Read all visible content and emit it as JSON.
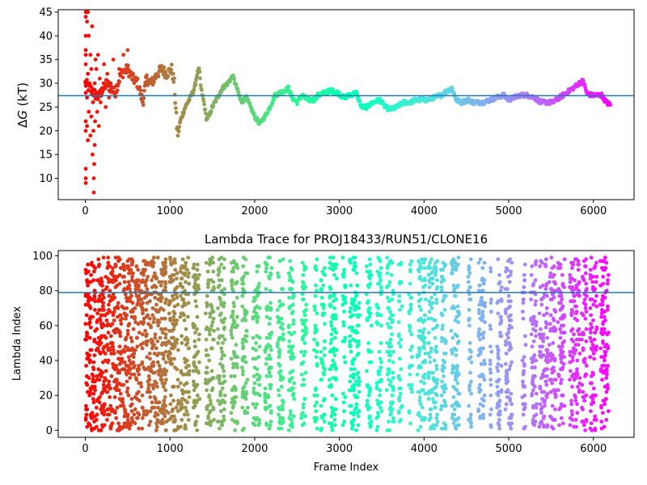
{
  "chart_data": [
    {
      "type": "scatter",
      "title": "",
      "xlabel": "",
      "ylabel_symbol": "Δ",
      "ylabel_var": "G",
      "ylabel_unit": " (kT)",
      "xlim": [
        -320,
        6480
      ],
      "ylim": [
        5.5,
        45.5
      ],
      "xticks": [
        0,
        1000,
        2000,
        3000,
        4000,
        5000,
        6000
      ],
      "yticks": [
        10,
        15,
        20,
        25,
        30,
        35,
        40,
        45
      ],
      "hline": 27.4,
      "hline_color": "#1f77b4",
      "colormap": "rainbow_r",
      "n_frames": 6200,
      "trace": [
        [
          0,
          30
        ],
        [
          150,
          27
        ],
        [
          250,
          30
        ],
        [
          350,
          28
        ],
        [
          420,
          32
        ],
        [
          500,
          33
        ],
        [
          560,
          31
        ],
        [
          620,
          30
        ],
        [
          680,
          26
        ],
        [
          720,
          31
        ],
        [
          780,
          30
        ],
        [
          850,
          32
        ],
        [
          900,
          33
        ],
        [
          960,
          32
        ],
        [
          1020,
          33
        ],
        [
          1050,
          30
        ],
        [
          1080,
          21
        ],
        [
          1095,
          19
        ],
        [
          1120,
          22
        ],
        [
          1180,
          25
        ],
        [
          1240,
          27
        ],
        [
          1290,
          29
        ],
        [
          1320,
          32
        ],
        [
          1345,
          33
        ],
        [
          1365,
          29
        ],
        [
          1400,
          26
        ],
        [
          1430,
          22.5
        ],
        [
          1460,
          23
        ],
        [
          1500,
          25
        ],
        [
          1560,
          27
        ],
        [
          1620,
          29
        ],
        [
          1680,
          30
        ],
        [
          1740,
          31.5
        ],
        [
          1790,
          29
        ],
        [
          1840,
          26
        ],
        [
          1900,
          27
        ],
        [
          1950,
          25
        ],
        [
          2000,
          23
        ],
        [
          2060,
          21.5
        ],
        [
          2120,
          23
        ],
        [
          2180,
          25
        ],
        [
          2240,
          27.5
        ],
        [
          2300,
          28
        ],
        [
          2360,
          28.5
        ],
        [
          2400,
          29
        ],
        [
          2440,
          27
        ],
        [
          2500,
          26
        ],
        [
          2560,
          27.5
        ],
        [
          2620,
          26.5
        ],
        [
          2700,
          26.5
        ],
        [
          2750,
          27.5
        ],
        [
          2820,
          28
        ],
        [
          2900,
          28.5
        ],
        [
          2980,
          28
        ],
        [
          3050,
          27
        ],
        [
          3120,
          27.5
        ],
        [
          3200,
          28
        ],
        [
          3260,
          25
        ],
        [
          3320,
          25
        ],
        [
          3400,
          26
        ],
        [
          3480,
          26.5
        ],
        [
          3540,
          25
        ],
        [
          3600,
          24.5
        ],
        [
          3680,
          25
        ],
        [
          3760,
          26
        ],
        [
          3840,
          26
        ],
        [
          3900,
          26.5
        ],
        [
          3960,
          26.5
        ],
        [
          4040,
          26.5
        ],
        [
          4120,
          27
        ],
        [
          4200,
          27.5
        ],
        [
          4280,
          28.5
        ],
        [
          4330,
          29
        ],
        [
          4380,
          26.5
        ],
        [
          4440,
          26
        ],
        [
          4520,
          26.5
        ],
        [
          4580,
          26
        ],
        [
          4640,
          26
        ],
        [
          4700,
          26
        ],
        [
          4780,
          26.5
        ],
        [
          4860,
          27
        ],
        [
          4940,
          27.5
        ],
        [
          5000,
          26.5
        ],
        [
          5060,
          27
        ],
        [
          5140,
          27.5
        ],
        [
          5220,
          27.5
        ],
        [
          5300,
          27
        ],
        [
          5380,
          26
        ],
        [
          5450,
          26
        ],
        [
          5520,
          26
        ],
        [
          5600,
          27
        ],
        [
          5680,
          28
        ],
        [
          5760,
          29
        ],
        [
          5830,
          30
        ],
        [
          5880,
          30.5
        ],
        [
          5920,
          28
        ],
        [
          5970,
          27.5
        ],
        [
          6040,
          27.5
        ],
        [
          6100,
          27.5
        ],
        [
          6150,
          26
        ],
        [
          6200,
          25.5
        ]
      ],
      "early_scatter_dG": [
        [
          5,
          10
        ],
        [
          5,
          12
        ],
        [
          5,
          9
        ],
        [
          5,
          20
        ],
        [
          5,
          30
        ],
        [
          5,
          34
        ],
        [
          5,
          36
        ],
        [
          5,
          37
        ],
        [
          5,
          40
        ],
        [
          5,
          44
        ],
        [
          5,
          22
        ],
        [
          5,
          28
        ],
        [
          5,
          45
        ],
        [
          20,
          21
        ],
        [
          20,
          27
        ],
        [
          20,
          43
        ],
        [
          30,
          45
        ],
        [
          30,
          18
        ],
        [
          30,
          32
        ],
        [
          40,
          24
        ],
        [
          40,
          40
        ],
        [
          50,
          30
        ],
        [
          60,
          36
        ],
        [
          60,
          19
        ],
        [
          70,
          23
        ],
        [
          70,
          33
        ],
        [
          80,
          42
        ],
        [
          85,
          15
        ],
        [
          90,
          26
        ],
        [
          95,
          20
        ],
        [
          100,
          10
        ],
        [
          100,
          7
        ],
        [
          105,
          13
        ],
        [
          110,
          30
        ],
        [
          110,
          17
        ],
        [
          115,
          22
        ],
        [
          120,
          35
        ],
        [
          125,
          28
        ],
        [
          130,
          33
        ],
        [
          140,
          24
        ],
        [
          150,
          36
        ],
        [
          160,
          21
        ],
        [
          170,
          31
        ],
        [
          180,
          26
        ],
        [
          200,
          29
        ],
        [
          220,
          34
        ],
        [
          240,
          25
        ],
        [
          260,
          32
        ],
        [
          280,
          27
        ],
        [
          300,
          30
        ],
        [
          330,
          35
        ],
        [
          360,
          28
        ],
        [
          400,
          33
        ],
        [
          450,
          36
        ],
        [
          500,
          37
        ]
      ]
    },
    {
      "type": "scatter",
      "title": "Lambda Trace for PROJ18433/RUN51/CLONE16",
      "xlabel": "Frame Index",
      "ylabel": "Lambda Index",
      "xlim": [
        -320,
        6480
      ],
      "ylim": [
        -4,
        103
      ],
      "xticks": [
        0,
        1000,
        2000,
        3000,
        4000,
        5000,
        6000
      ],
      "yticks": [
        0,
        20,
        40,
        60,
        80,
        100
      ],
      "hline": 79,
      "hline_color": "#1f77b4",
      "colormap": "rainbow_r",
      "n_frames": 6200,
      "bands": [
        [
          0,
          120
        ],
        [
          130,
          640
        ],
        [
          650,
          960
        ],
        [
          980,
          1100
        ],
        [
          1120,
          1230
        ],
        [
          1270,
          1350
        ],
        [
          1420,
          1520
        ],
        [
          1560,
          1650
        ],
        [
          1720,
          1800
        ],
        [
          1850,
          1920
        ],
        [
          1980,
          2060
        ],
        [
          2120,
          2200
        ],
        [
          2270,
          2340
        ],
        [
          2400,
          2470
        ],
        [
          2550,
          2610
        ],
        [
          2700,
          2740
        ],
        [
          2780,
          2830
        ],
        [
          2880,
          2970
        ],
        [
          3040,
          3070
        ],
        [
          3120,
          3240
        ],
        [
          3320,
          3380
        ],
        [
          3440,
          3500
        ],
        [
          3560,
          3640
        ],
        [
          3700,
          3740
        ],
        [
          3820,
          3860
        ],
        [
          3920,
          4020
        ],
        [
          4050,
          4160
        ],
        [
          4200,
          4260
        ],
        [
          4320,
          4420
        ],
        [
          4520,
          4560
        ],
        [
          4640,
          4720
        ],
        [
          4780,
          4800
        ],
        [
          4860,
          4920
        ],
        [
          4960,
          5040
        ],
        [
          5160,
          5200
        ],
        [
          5260,
          5330
        ],
        [
          5360,
          5460
        ],
        [
          5480,
          5560
        ],
        [
          5580,
          5660
        ],
        [
          5720,
          5840
        ],
        [
          5860,
          5920
        ],
        [
          5960,
          6040
        ],
        [
          6080,
          6180
        ]
      ]
    }
  ]
}
